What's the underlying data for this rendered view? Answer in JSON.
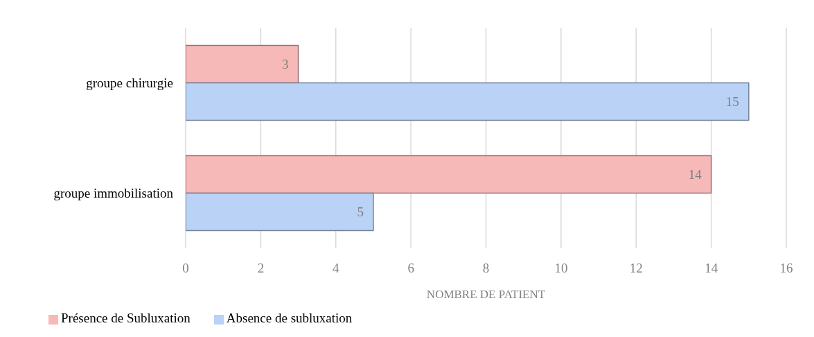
{
  "chart_data": {
    "type": "bar",
    "orientation": "horizontal",
    "categories": [
      "groupe chirurgie",
      "groupe immobilisation"
    ],
    "series": [
      {
        "name": "Présence de Subluxation",
        "color": "#f7b8b8",
        "values": [
          3,
          14
        ]
      },
      {
        "name": "Absence de subluxation",
        "color": "#b9d2f5",
        "values": [
          15,
          5
        ]
      }
    ],
    "xlabel": "NOMBRE DE PATIENT",
    "xlim": [
      0,
      16
    ],
    "xticks": [
      0,
      2,
      4,
      6,
      8,
      10,
      12,
      14,
      16
    ],
    "grid": "x",
    "legend": "bottom left",
    "data_labels": true
  }
}
